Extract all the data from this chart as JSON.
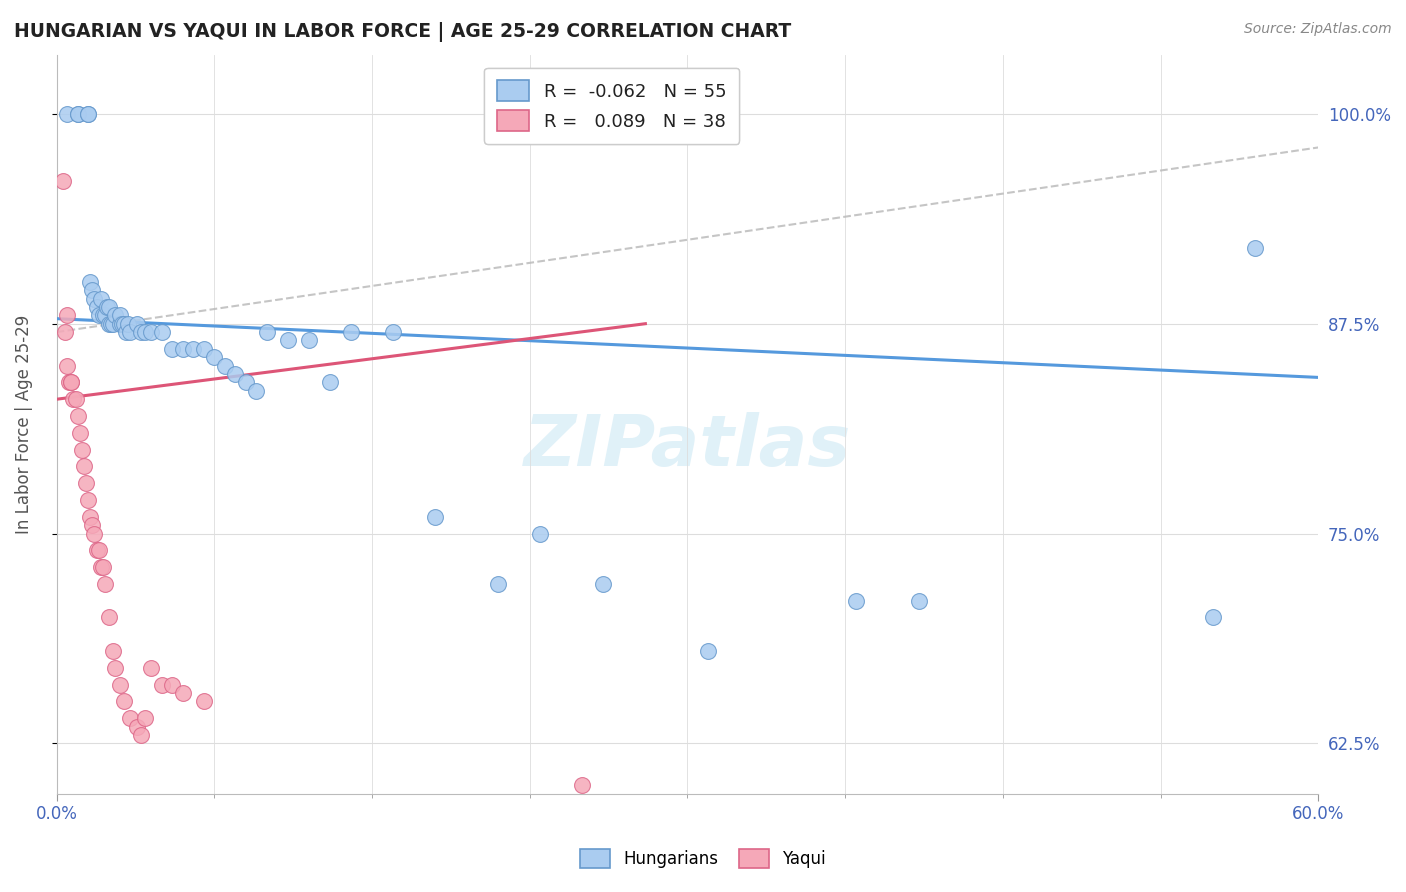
{
  "title": "HUNGARIAN VS YAQUI IN LABOR FORCE | AGE 25-29 CORRELATION CHART",
  "source": "Source: ZipAtlas.com",
  "ylabel": "In Labor Force | Age 25-29",
  "xmin": 0.0,
  "xmax": 0.6,
  "ymin": 0.595,
  "ymax": 1.035,
  "blue_R": -0.062,
  "blue_N": 55,
  "pink_R": 0.089,
  "pink_N": 38,
  "blue_color": "#aaccf0",
  "pink_color": "#f5a8b8",
  "blue_edge": "#6699cc",
  "pink_edge": "#dd6688",
  "blue_trend_color": "#5599dd",
  "pink_trend_color": "#dd5577",
  "ref_line_color": "#bbbbbb",
  "watermark_color": "#cce8f4",
  "grid_color": "#dddddd",
  "ytick_vals": [
    1.0,
    0.875,
    0.75,
    0.625
  ],
  "ytick_labels": [
    "100.0%",
    "87.5%",
    "75.0%",
    "62.5%"
  ],
  "blue_scatter_x": [
    0.005,
    0.01,
    0.01,
    0.015,
    0.015,
    0.016,
    0.017,
    0.018,
    0.019,
    0.02,
    0.021,
    0.022,
    0.023,
    0.024,
    0.025,
    0.025,
    0.026,
    0.027,
    0.028,
    0.03,
    0.03,
    0.031,
    0.032,
    0.033,
    0.034,
    0.035,
    0.038,
    0.04,
    0.042,
    0.045,
    0.05,
    0.055,
    0.06,
    0.065,
    0.07,
    0.075,
    0.08,
    0.085,
    0.09,
    0.095,
    0.1,
    0.11,
    0.12,
    0.13,
    0.14,
    0.16,
    0.18,
    0.21,
    0.23,
    0.26,
    0.31,
    0.38,
    0.41,
    0.55,
    0.57
  ],
  "blue_scatter_y": [
    1.0,
    1.0,
    1.0,
    1.0,
    1.0,
    0.9,
    0.895,
    0.89,
    0.885,
    0.88,
    0.89,
    0.88,
    0.88,
    0.885,
    0.875,
    0.885,
    0.875,
    0.875,
    0.88,
    0.875,
    0.88,
    0.875,
    0.875,
    0.87,
    0.875,
    0.87,
    0.875,
    0.87,
    0.87,
    0.87,
    0.87,
    0.86,
    0.86,
    0.86,
    0.86,
    0.855,
    0.85,
    0.845,
    0.84,
    0.835,
    0.87,
    0.865,
    0.865,
    0.84,
    0.87,
    0.87,
    0.76,
    0.72,
    0.75,
    0.72,
    0.68,
    0.71,
    0.71,
    0.7,
    0.92
  ],
  "pink_scatter_x": [
    0.003,
    0.004,
    0.005,
    0.005,
    0.006,
    0.007,
    0.007,
    0.008,
    0.009,
    0.01,
    0.011,
    0.012,
    0.013,
    0.014,
    0.015,
    0.016,
    0.017,
    0.018,
    0.019,
    0.02,
    0.021,
    0.022,
    0.023,
    0.025,
    0.027,
    0.028,
    0.03,
    0.032,
    0.035,
    0.038,
    0.04,
    0.042,
    0.045,
    0.05,
    0.055,
    0.06,
    0.07,
    0.25
  ],
  "pink_scatter_y": [
    0.96,
    0.87,
    0.88,
    0.85,
    0.84,
    0.84,
    0.84,
    0.83,
    0.83,
    0.82,
    0.81,
    0.8,
    0.79,
    0.78,
    0.77,
    0.76,
    0.755,
    0.75,
    0.74,
    0.74,
    0.73,
    0.73,
    0.72,
    0.7,
    0.68,
    0.67,
    0.66,
    0.65,
    0.64,
    0.635,
    0.63,
    0.64,
    0.67,
    0.66,
    0.66,
    0.655,
    0.65,
    0.6
  ],
  "blue_trend_x": [
    0.0,
    0.6
  ],
  "blue_trend_y": [
    0.878,
    0.843
  ],
  "pink_trend_x": [
    0.0,
    0.28
  ],
  "pink_trend_y": [
    0.83,
    0.875
  ],
  "ref_line_x": [
    0.0,
    0.6
  ],
  "ref_line_y": [
    0.87,
    0.98
  ]
}
